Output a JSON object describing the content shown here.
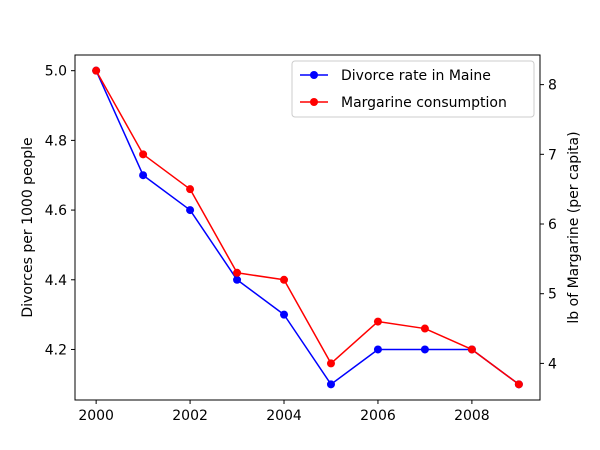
{
  "chart_data": {
    "type": "line",
    "title": "",
    "xlabel": "",
    "x": [
      2000,
      2001,
      2002,
      2003,
      2004,
      2005,
      2006,
      2007,
      2008,
      2009
    ],
    "xticks": [
      2000,
      2002,
      2004,
      2006,
      2008
    ],
    "xtick_labels": [
      "2000",
      "2002",
      "2004",
      "2006",
      "2008"
    ],
    "xlim": [
      1999.55,
      2009.45
    ],
    "y_left": {
      "label": "Divorces per 1000 people",
      "lim": [
        4.055,
        5.045
      ],
      "ticks": [
        4.2,
        4.4,
        4.6,
        4.8,
        5.0
      ],
      "tick_labels": [
        "4.2",
        "4.4",
        "4.6",
        "4.8",
        "5.0"
      ]
    },
    "y_right": {
      "label": "lb of Margarine (per capita)",
      "lim": [
        3.475,
        8.425
      ],
      "ticks": [
        4,
        5,
        6,
        7,
        8
      ],
      "tick_labels": [
        "4",
        "5",
        "6",
        "7",
        "8"
      ]
    },
    "series": [
      {
        "name": "Divorce rate in Maine",
        "axis": "left",
        "color": "#0000ff",
        "values": [
          5.0,
          4.7,
          4.6,
          4.4,
          4.3,
          4.1,
          4.2,
          4.2,
          4.2,
          4.1
        ]
      },
      {
        "name": "Margarine consumption",
        "axis": "right",
        "color": "#ff0000",
        "values": [
          8.2,
          7.0,
          6.5,
          5.3,
          5.2,
          4.0,
          4.6,
          4.5,
          4.2,
          3.7
        ]
      }
    ],
    "legend_position": "top-right",
    "grid": false
  }
}
